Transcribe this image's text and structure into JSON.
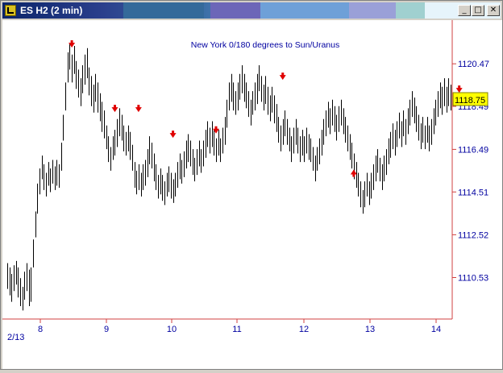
{
  "window": {
    "title": "ES H2 (2 min)",
    "buttons": {
      "minimize": "_",
      "maximize": "□",
      "close": "✕"
    }
  },
  "colors": {
    "axis": "#d04040",
    "text": "#0000a0",
    "bars": "#000000",
    "arrow": "#e00000",
    "price_box": "#ffff00"
  },
  "chart_data": {
    "type": "bar",
    "title": "New York 0/180 degrees to Sun/Uranus",
    "x_date_label": "2/13",
    "x_tick_labels": [
      "8",
      "9",
      "10",
      "11",
      "12",
      "13",
      "14"
    ],
    "y_tick_labels": [
      "1120.47",
      "1118.49",
      "1116.49",
      "1114.51",
      "1112.52",
      "1110.53"
    ],
    "ylim": [
      1108.6,
      1122.5
    ],
    "current_price": "1118.75",
    "down_arrow_labels": [
      1121.3,
      1118.3,
      1118.3,
      1117.1,
      1117.3,
      1119.8,
      1119.2
    ],
    "up_arrow_labels": [
      1115.4
    ],
    "bars": [
      [
        1111.2,
        1110.0
      ],
      [
        1111.0,
        1109.7
      ],
      [
        1110.7,
        1109.4
      ],
      [
        1111.1,
        1109.9
      ],
      [
        1111.3,
        1110.2
      ],
      [
        1111.0,
        1109.6
      ],
      [
        1110.5,
        1109.2
      ],
      [
        1110.1,
        1109.0
      ],
      [
        1110.8,
        1109.5
      ],
      [
        1111.2,
        1109.9
      ],
      [
        1110.9,
        1109.2
      ],
      [
        1111.0,
        1109.4
      ],
      [
        1112.3,
        1111.0
      ],
      [
        1113.6,
        1112.4
      ],
      [
        1114.9,
        1113.5
      ],
      [
        1115.6,
        1114.4
      ],
      [
        1116.2,
        1115.1
      ],
      [
        1115.8,
        1114.6
      ],
      [
        1115.4,
        1114.3
      ],
      [
        1115.9,
        1114.8
      ],
      [
        1115.6,
        1114.5
      ],
      [
        1116.0,
        1114.9
      ],
      [
        1115.7,
        1114.6
      ],
      [
        1116.0,
        1114.8
      ],
      [
        1115.8,
        1114.7
      ],
      [
        1116.8,
        1115.5
      ],
      [
        1118.1,
        1116.9
      ],
      [
        1119.6,
        1118.3
      ],
      [
        1121.0,
        1119.6
      ],
      [
        1121.4,
        1120.2
      ],
      [
        1120.9,
        1119.6
      ],
      [
        1121.3,
        1120.0
      ],
      [
        1120.6,
        1119.3
      ],
      [
        1120.2,
        1118.9
      ],
      [
        1119.8,
        1118.5
      ],
      [
        1120.4,
        1119.1
      ],
      [
        1120.9,
        1119.5
      ],
      [
        1121.2,
        1119.8
      ],
      [
        1120.3,
        1119.0
      ],
      [
        1119.9,
        1118.5
      ],
      [
        1119.5,
        1118.2
      ],
      [
        1120.0,
        1118.7
      ],
      [
        1119.6,
        1118.2
      ],
      [
        1119.1,
        1117.8
      ],
      [
        1118.7,
        1117.3
      ],
      [
        1118.3,
        1117.0
      ],
      [
        1117.6,
        1116.5
      ],
      [
        1117.1,
        1115.9
      ],
      [
        1116.6,
        1115.5
      ],
      [
        1117.1,
        1116.0
      ],
      [
        1117.4,
        1116.2
      ],
      [
        1117.9,
        1116.6
      ],
      [
        1118.4,
        1117.1
      ],
      [
        1118.1,
        1116.9
      ],
      [
        1117.6,
        1116.4
      ],
      [
        1117.3,
        1116.2
      ],
      [
        1117.6,
        1116.4
      ],
      [
        1117.3,
        1116.0
      ],
      [
        1116.7,
        1115.5
      ],
      [
        1115.9,
        1114.7
      ],
      [
        1115.5,
        1114.4
      ],
      [
        1115.8,
        1114.6
      ],
      [
        1115.4,
        1114.3
      ],
      [
        1115.8,
        1114.6
      ],
      [
        1116.0,
        1114.8
      ],
      [
        1116.5,
        1115.2
      ],
      [
        1117.1,
        1115.8
      ],
      [
        1116.8,
        1115.6
      ],
      [
        1116.3,
        1115.0
      ],
      [
        1115.8,
        1114.6
      ],
      [
        1115.3,
        1114.2
      ],
      [
        1115.6,
        1114.4
      ],
      [
        1115.3,
        1114.1
      ],
      [
        1115.0,
        1113.9
      ],
      [
        1115.4,
        1114.3
      ],
      [
        1115.7,
        1114.5
      ],
      [
        1115.4,
        1114.2
      ],
      [
        1115.1,
        1114.0
      ],
      [
        1115.4,
        1114.3
      ],
      [
        1115.9,
        1114.7
      ],
      [
        1116.3,
        1115.1
      ],
      [
        1116.0,
        1114.9
      ],
      [
        1116.4,
        1115.2
      ],
      [
        1116.9,
        1115.6
      ],
      [
        1117.2,
        1115.9
      ],
      [
        1116.9,
        1115.7
      ],
      [
        1116.5,
        1115.3
      ],
      [
        1116.1,
        1115.0
      ],
      [
        1116.5,
        1115.3
      ],
      [
        1116.9,
        1115.7
      ],
      [
        1116.5,
        1115.4
      ],
      [
        1116.9,
        1115.7
      ],
      [
        1117.4,
        1116.1
      ],
      [
        1117.8,
        1116.6
      ],
      [
        1117.5,
        1116.3
      ],
      [
        1117.8,
        1116.6
      ],
      [
        1117.4,
        1116.2
      ],
      [
        1117.0,
        1115.9
      ],
      [
        1117.4,
        1116.2
      ],
      [
        1117.0,
        1115.9
      ],
      [
        1117.5,
        1116.3
      ],
      [
        1118.0,
        1116.7
      ],
      [
        1118.8,
        1117.5
      ],
      [
        1119.6,
        1118.3
      ],
      [
        1120.0,
        1118.7
      ],
      [
        1119.6,
        1118.3
      ],
      [
        1119.2,
        1118.1
      ],
      [
        1119.6,
        1118.3
      ],
      [
        1120.0,
        1118.8
      ],
      [
        1120.4,
        1119.1
      ],
      [
        1120.0,
        1118.7
      ],
      [
        1119.6,
        1118.4
      ],
      [
        1119.2,
        1118.0
      ],
      [
        1118.8,
        1117.6
      ],
      [
        1119.2,
        1118.1
      ],
      [
        1119.6,
        1118.3
      ],
      [
        1120.0,
        1118.6
      ],
      [
        1120.4,
        1119.2
      ],
      [
        1119.9,
        1118.7
      ],
      [
        1119.5,
        1118.3
      ],
      [
        1119.9,
        1118.6
      ],
      [
        1119.4,
        1118.1
      ],
      [
        1119.0,
        1117.8
      ],
      [
        1119.4,
        1118.2
      ],
      [
        1119.0,
        1117.7
      ],
      [
        1118.6,
        1117.3
      ],
      [
        1118.0,
        1116.8
      ],
      [
        1117.6,
        1116.4
      ],
      [
        1117.9,
        1116.7
      ],
      [
        1118.3,
        1117.1
      ],
      [
        1117.9,
        1116.7
      ],
      [
        1117.5,
        1116.4
      ],
      [
        1117.1,
        1115.9
      ],
      [
        1117.5,
        1116.3
      ],
      [
        1117.9,
        1116.7
      ],
      [
        1117.5,
        1116.3
      ],
      [
        1117.1,
        1115.9
      ],
      [
        1117.4,
        1116.2
      ],
      [
        1117.1,
        1115.9
      ],
      [
        1117.5,
        1116.3
      ],
      [
        1117.2,
        1116.0
      ],
      [
        1117.0,
        1115.9
      ],
      [
        1116.6,
        1115.5
      ],
      [
        1116.2,
        1115.0
      ],
      [
        1116.6,
        1115.5
      ],
      [
        1117.0,
        1115.8
      ],
      [
        1117.4,
        1116.2
      ],
      [
        1117.9,
        1116.7
      ],
      [
        1118.3,
        1117.1
      ],
      [
        1118.7,
        1117.5
      ],
      [
        1118.4,
        1117.2
      ],
      [
        1118.8,
        1117.6
      ],
      [
        1118.5,
        1117.3
      ],
      [
        1118.1,
        1116.9
      ],
      [
        1118.5,
        1117.3
      ],
      [
        1118.8,
        1117.6
      ],
      [
        1118.4,
        1117.2
      ],
      [
        1118.0,
        1116.8
      ],
      [
        1117.6,
        1116.4
      ],
      [
        1117.2,
        1116.0
      ],
      [
        1116.8,
        1115.6
      ],
      [
        1116.3,
        1115.1
      ],
      [
        1115.9,
        1114.7
      ],
      [
        1115.4,
        1114.3
      ],
      [
        1115.0,
        1113.8
      ],
      [
        1114.6,
        1113.5
      ],
      [
        1115.0,
        1113.8
      ],
      [
        1115.4,
        1114.3
      ],
      [
        1115.0,
        1113.9
      ],
      [
        1115.4,
        1114.2
      ],
      [
        1115.8,
        1114.6
      ],
      [
        1116.2,
        1115.0
      ],
      [
        1116.5,
        1115.4
      ],
      [
        1116.1,
        1115.0
      ],
      [
        1115.8,
        1114.6
      ],
      [
        1116.2,
        1115.0
      ],
      [
        1116.5,
        1115.3
      ],
      [
        1117.0,
        1115.8
      ],
      [
        1117.3,
        1116.1
      ],
      [
        1117.7,
        1116.5
      ],
      [
        1117.4,
        1116.2
      ],
      [
        1117.8,
        1116.6
      ],
      [
        1118.2,
        1117.0
      ],
      [
        1117.8,
        1116.6
      ],
      [
        1118.3,
        1117.1
      ],
      [
        1117.9,
        1116.7
      ],
      [
        1118.4,
        1117.2
      ],
      [
        1118.8,
        1117.6
      ],
      [
        1119.2,
        1118.0
      ],
      [
        1118.9,
        1117.7
      ],
      [
        1118.5,
        1117.3
      ],
      [
        1118.1,
        1116.9
      ],
      [
        1117.7,
        1116.5
      ],
      [
        1118.0,
        1116.8
      ],
      [
        1117.6,
        1116.5
      ],
      [
        1118.0,
        1116.8
      ],
      [
        1117.6,
        1116.4
      ],
      [
        1117.9,
        1116.7
      ],
      [
        1118.4,
        1117.2
      ],
      [
        1118.8,
        1117.6
      ],
      [
        1119.2,
        1118.0
      ],
      [
        1119.6,
        1118.4
      ],
      [
        1119.4,
        1118.1
      ],
      [
        1119.8,
        1118.5
      ],
      [
        1119.4,
        1118.2
      ],
      [
        1119.8,
        1118.5
      ],
      [
        1119.5,
        1118.3
      ]
    ]
  }
}
